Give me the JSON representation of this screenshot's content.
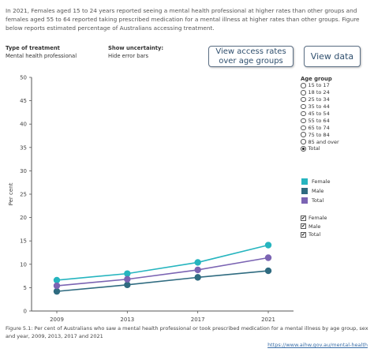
{
  "intro_text": "In 2021, Females aged 15 to 24 years reported seeing a mental health professional at higher rates than other groups  and females aged 55 to 64 reported taking prescribed medication for a mental illness at higher rates than other groups. Figure below reports estimated percentage of Australians accessing treatment.",
  "controls": {
    "treatment_label": "Type of treatment",
    "treatment_value": "Mental health professional",
    "uncertainty_label": "Show uncertainty:",
    "uncertainty_value": "Hide error bars"
  },
  "buttons": {
    "access_rates": "View access rates over age groups",
    "view_data": "View data"
  },
  "age_group": {
    "title": "Age group",
    "options": [
      "15 to 17",
      "18 to 24",
      "25 to 34",
      "35 to 44",
      "45 to 54",
      "55 to 64",
      "65 to 74",
      "75 to 84",
      "85 and over",
      "Total"
    ],
    "selected": "Total"
  },
  "sex_filter": {
    "options": [
      "Female",
      "Male",
      "Total"
    ],
    "checked": [
      true,
      true,
      true
    ]
  },
  "chart_data": {
    "type": "line",
    "x": [
      "2009",
      "2013",
      "2017",
      "2021"
    ],
    "series": [
      {
        "name": "Female",
        "color": "#26b5bf",
        "values": [
          6.6,
          8.0,
          10.4,
          14.1
        ]
      },
      {
        "name": "Male",
        "color": "#2f6b80",
        "values": [
          4.2,
          5.6,
          7.2,
          8.6
        ]
      },
      {
        "name": "Total",
        "color": "#7b64b3",
        "values": [
          5.4,
          6.8,
          8.8,
          11.4
        ]
      }
    ],
    "ylabel": "Per cent",
    "ylim": [
      0,
      50
    ],
    "yticks": [
      0,
      5,
      10,
      15,
      20,
      25,
      30,
      35,
      40,
      45,
      50
    ],
    "grid": false,
    "legend": "right"
  },
  "caption": "Figure 5.1: Per cent of Australians who saw a mental health professional or took prescribed medication for a mental illness by age group, sex and year,  2009, 2013, 2017 and 2021",
  "source": "https://www.aihw.gov.au/mental-health"
}
